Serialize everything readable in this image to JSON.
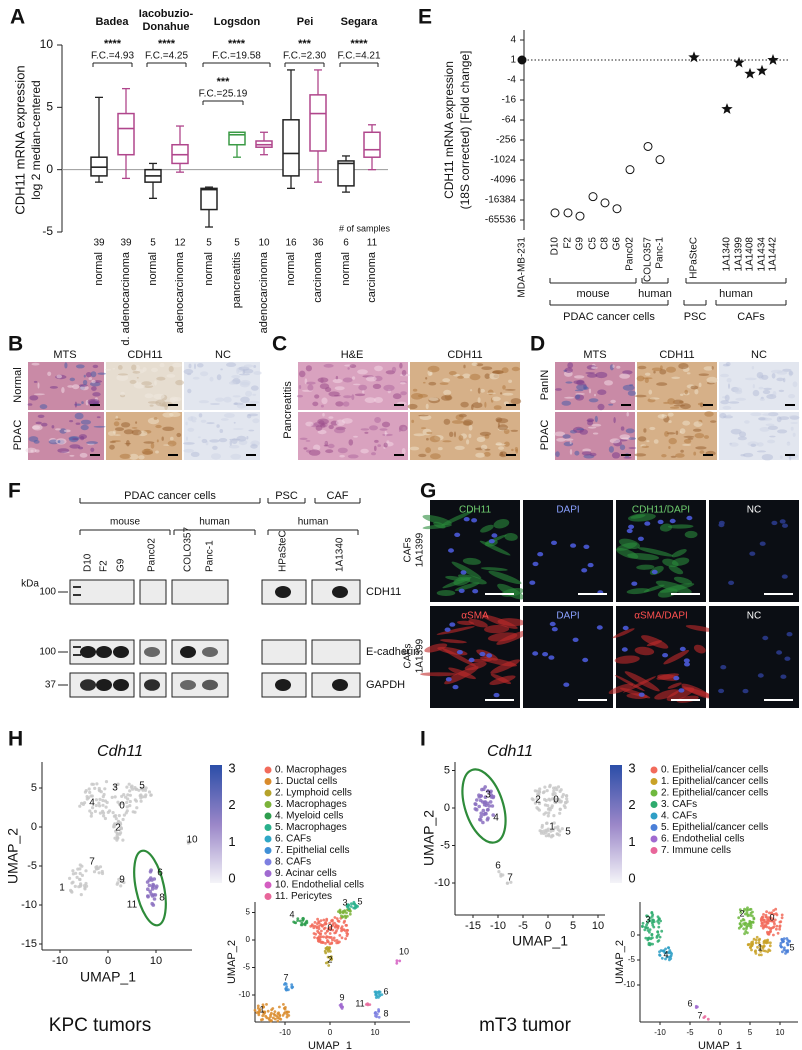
{
  "panel_letters": [
    "A",
    "E",
    "B",
    "C",
    "D",
    "F",
    "G",
    "H",
    "I"
  ],
  "chart_data": [
    {
      "type": "box",
      "y_label": [
        "CDH11 mRNA expression",
        "log 2 median-centered"
      ],
      "dataset_names": [
        [
          "Badea"
        ],
        [
          "Iacobuzio-",
          "Donahue"
        ],
        [
          "Logsdon"
        ],
        [
          "Pei"
        ],
        [
          "Segara"
        ]
      ],
      "comparisons": [
        {
          "stars": "****",
          "label": "F.C.=4.93"
        },
        {
          "stars": "****",
          "label": "F.C.=4.25"
        },
        {
          "stars": "****",
          "label": "F.C.=19.58"
        },
        {
          "stars": "***",
          "label": "F.C.=25.19"
        },
        {
          "stars": "***",
          "label": "F.C.=2.30"
        },
        {
          "stars": "****",
          "label": "F.C.=4.21"
        }
      ],
      "categories": [
        "normal",
        "d. adenocarcinoma",
        "normal",
        "adenocarcinoma",
        "normal",
        "pancreatitis",
        "adenocarcinoma",
        "normal",
        "carcinoma",
        "normal",
        "carcinoma"
      ],
      "n_label": "# of samples",
      "n_samples": [
        39,
        39,
        5,
        12,
        5,
        5,
        10,
        16,
        36,
        6,
        11
      ],
      "colors": [
        "#222222",
        "#b0468c",
        "#222222",
        "#b0468c",
        "#222222",
        "#3a9a45",
        "#b0468c",
        "#222222",
        "#b0468c",
        "#222222",
        "#b0468c"
      ],
      "boxes": [
        {
          "min": -1,
          "q1": -0.5,
          "median": 0.2,
          "q3": 1,
          "max": 5.8
        },
        {
          "min": -0.7,
          "q1": 1.2,
          "median": 3.3,
          "q3": 4.5,
          "max": 6.5
        },
        {
          "min": -2.3,
          "q1": -1,
          "median": -0.5,
          "q3": 0,
          "max": 0.5
        },
        {
          "min": -0.2,
          "q1": 0.5,
          "median": 1.2,
          "q3": 2,
          "max": 3.5
        },
        {
          "min": -4.6,
          "q1": -3.2,
          "median": -1.6,
          "q3": -1.5,
          "max": -1.4
        },
        {
          "min": 1,
          "q1": 2,
          "median": 2.8,
          "q3": 3,
          "max": 3
        },
        {
          "min": 1.2,
          "q1": 1.8,
          "median": 2,
          "q3": 2.3,
          "max": 3
        },
        {
          "min": -1.5,
          "q1": -0.5,
          "median": 1.3,
          "q3": 4,
          "max": 8
        },
        {
          "min": -1,
          "q1": 1.5,
          "median": 4.5,
          "q3": 6,
          "max": 8
        },
        {
          "min": -1.8,
          "q1": -1.3,
          "median": 0.5,
          "q3": 0.7,
          "max": 1.1
        },
        {
          "min": 0,
          "q1": 1,
          "median": 1.6,
          "q3": 3,
          "max": 3.6
        }
      ],
      "reference_line": 0,
      "ylim": [
        -5,
        10
      ],
      "yticks": [
        -5,
        0,
        5,
        10
      ]
    },
    {
      "type": "scatter",
      "y_label": [
        "CDH11 mRNA expression",
        "(18S corrected) [Fold change]"
      ],
      "scale": "signed-log2",
      "categories": [
        "MDA-MB-231",
        "D10",
        "F2",
        "G9",
        "C5",
        "C8",
        "G6",
        "Panc02",
        "COLO357",
        "Panc-1",
        "HPaSteC",
        "1A1340",
        "1A1399",
        "1A1408",
        "1A1434",
        "1A1442"
      ],
      "values": [
        1,
        -40000,
        -40000,
        -50000,
        -13000,
        -20000,
        -30000,
        -2000,
        -400,
        -1000,
        1.2,
        -30,
        -1.2,
        -2.6,
        -2.1,
        1
      ],
      "markers": [
        "circle-filled",
        "circle-open",
        "circle-open",
        "circle-open",
        "circle-open",
        "circle-open",
        "circle-open",
        "circle-open",
        "circle-open",
        "circle-open",
        "star",
        "star",
        "star",
        "star",
        "star",
        "star"
      ],
      "reference_line": 1,
      "group_labels": [
        "mouse",
        "human",
        "PDAC cancer cells",
        "human",
        "PSC",
        "CAFs"
      ],
      "ylim": [
        -131072,
        8
      ],
      "yticks": [
        4,
        1,
        -4,
        -16,
        -64,
        -256,
        -1024,
        -4096,
        -16384,
        -65536
      ]
    }
  ],
  "panel_b": {
    "columns": [
      "MTS",
      "CDH11",
      "NC"
    ],
    "rows": [
      "Normal",
      "PDAC"
    ]
  },
  "panel_c": {
    "columns": [
      "H&E",
      "CDH11"
    ],
    "rows": [
      "Pancreatitis"
    ]
  },
  "panel_d": {
    "columns": [
      "MTS",
      "CDH11",
      "NC"
    ],
    "rows": [
      "PanIN",
      "PDAC"
    ]
  },
  "panel_f": {
    "groups": [
      "PDAC cancer cells",
      "PSC",
      "CAF"
    ],
    "subgroups": [
      "mouse",
      "human",
      "human"
    ],
    "lanes": [
      "D10",
      "F2",
      "G9",
      "Panc02",
      "COLO357",
      "Panc-1",
      "HPaSteC",
      "1A1340"
    ],
    "kda_label": "kDa",
    "kda_marks": [
      "100",
      "100",
      "37"
    ],
    "bands": [
      "CDH11",
      "E-cadherin",
      "GAPDH"
    ]
  },
  "panel_g": {
    "rows": [
      {
        "label": [
          "CAFs",
          "1A1399"
        ],
        "columns": [
          "CDH11",
          "DAPI",
          "CDH11/DAPI",
          "NC"
        ]
      },
      {
        "label": [
          "CAFs",
          "1A1399"
        ],
        "columns": [
          "αSMA",
          "DAPI",
          "αSMA/DAPI",
          "NC"
        ]
      }
    ]
  },
  "panel_h": {
    "gene": "Cdh11",
    "x_label": "UMAP_1",
    "y_label": "UMAP_2",
    "xticks": [
      -10,
      0,
      10
    ],
    "yticks": [
      5,
      0,
      -5,
      -10,
      -15
    ],
    "colorbar_ticks": [
      3,
      2,
      1,
      0
    ],
    "cluster_labels": [
      "3",
      "5",
      "4",
      "0",
      "2",
      "10",
      "7",
      "9",
      "1",
      "11",
      "6",
      "8"
    ],
    "legend": [
      "0. Macrophages",
      "1. Ductal cells",
      "2. Lymphoid cells",
      "3. Macrophages",
      "4. Myeloid cells",
      "5. Macrophages",
      "6. CAFs",
      "7. Epithelial cells",
      "8. CAFs",
      "9. Acinar cells",
      "10. Endothelial cells",
      "11. Pericytes"
    ],
    "colors": [
      "#f26b5b",
      "#d98b2b",
      "#b5a22a",
      "#7bb33a",
      "#2e9d4e",
      "#2ab08c",
      "#2fa7c6",
      "#3f8fd6",
      "#7d7fe0",
      "#a06ad0",
      "#d45dc1",
      "#e8669a"
    ],
    "small_xticks": [
      -10,
      0,
      10
    ],
    "small_yticks": [
      5,
      0,
      -5,
      -10
    ],
    "small_cluster_labels": [
      "0",
      "1",
      "2",
      "3",
      "4",
      "5",
      "6",
      "7",
      "8",
      "9",
      "10",
      "11"
    ],
    "caption": "KPC tumors"
  },
  "panel_i": {
    "gene": "Cdh11",
    "x_label": "UMAP_1",
    "y_label": "UMAP_2",
    "xticks": [
      -15,
      -10,
      -5,
      0,
      5,
      10
    ],
    "yticks": [
      5,
      0,
      -5,
      -10
    ],
    "colorbar_ticks": [
      3,
      2,
      1,
      0
    ],
    "cluster_labels": [
      "3",
      "4",
      "2",
      "0",
      "1",
      "5",
      "6",
      "7"
    ],
    "legend": [
      "0. Epithelial/cancer cells",
      "1. Epithelial/cancer cells",
      "2. Epithelial/cancer cells",
      "3. CAFs",
      "4. CAFs",
      "5. Epithelial/cancer cells",
      "6. Endothelial cells",
      "7. Immune cells"
    ],
    "colors": [
      "#f26b5b",
      "#c9a227",
      "#6fb83f",
      "#2eab6e",
      "#2f9fc6",
      "#4a7fd8",
      "#a06ad0",
      "#e8669a"
    ],
    "small_xticks": [
      -10,
      -5,
      0,
      5,
      10
    ],
    "small_yticks": [
      0,
      -5,
      -10
    ],
    "small_cluster_labels": [
      "0",
      "1",
      "2",
      "3",
      "4",
      "5",
      "6",
      "7"
    ],
    "caption": "mT3 tumor"
  }
}
